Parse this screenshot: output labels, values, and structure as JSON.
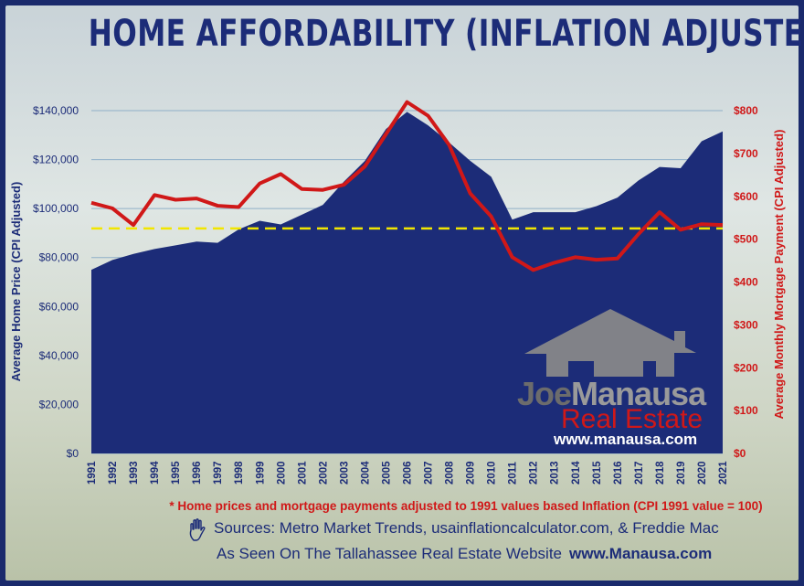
{
  "title": "HOME AFFORDABILITY (INFLATION ADJUSTED)",
  "footnote": "* Home prices and mortgage payments adjusted to 1991 values based Inflation  (CPI 1991 value = 100)",
  "sources": "Sources:  Metro Market Trends, usainflationcalculator.com,  & Freddie Mac",
  "seen_on": "As Seen On The Tallahassee Real Estate Website",
  "seen_on_url": "www.Manausa.com",
  "logo": {
    "joe": "Joe",
    "manausa": "Manausa",
    "real_estate": "Real Estate",
    "website": "www.manausa.com"
  },
  "colors": {
    "area": "#1c2c78",
    "line": "#d01818",
    "reference": "#f2e600",
    "left_axis": "#1c2c78",
    "right_axis": "#d01818"
  },
  "icons": [
    "hand-icon",
    "house-logo-icon"
  ],
  "chart_data": {
    "type": "area",
    "x": [
      1991,
      1992,
      1993,
      1994,
      1995,
      1996,
      1997,
      1998,
      1999,
      2000,
      2001,
      2002,
      2003,
      2004,
      2005,
      2006,
      2007,
      2008,
      2009,
      2010,
      2011,
      2012,
      2013,
      2014,
      2015,
      2016,
      2017,
      2018,
      2019,
      2020,
      2021
    ],
    "xlabel": "",
    "ylabel_left": "Average Home Price (CPI Adjusted)",
    "ylabel_right": "Average Monthly Mortgage Payment (CPI Adjusted)",
    "ylim_left": [
      0,
      140000
    ],
    "ylim_right": [
      0,
      800
    ],
    "yticks_left": [
      "$0",
      "$20,000",
      "$40,000",
      "$60,000",
      "$80,000",
      "$100,000",
      "$120,000",
      "$140,000"
    ],
    "yticks_right": [
      "$0",
      "$100",
      "$200",
      "$300",
      "$400",
      "$500",
      "$600",
      "$700",
      "$800"
    ],
    "grid": true,
    "series": [
      {
        "axis": "left",
        "type": "area",
        "values": [
          75000,
          79000,
          81500,
          83500,
          85000,
          86500,
          86000,
          91500,
          95000,
          93500,
          97500,
          101500,
          111000,
          119500,
          132500,
          139500,
          134000,
          127000,
          119500,
          113000,
          95500,
          98500,
          98500,
          98500,
          101000,
          104500,
          111500,
          117000,
          116500,
          127500,
          131500
        ]
      },
      {
        "axis": "right",
        "type": "line",
        "values": [
          585,
          572,
          533,
          603,
          592,
          595,
          578,
          575,
          630,
          652,
          617,
          615,
          627,
          670,
          745,
          820,
          788,
          720,
          607,
          553,
          458,
          428,
          445,
          458,
          452,
          455,
          512,
          563,
          522,
          535,
          533
        ]
      },
      {
        "axis": "right",
        "type": "reference",
        "style": "dashed",
        "value": 525
      }
    ]
  }
}
